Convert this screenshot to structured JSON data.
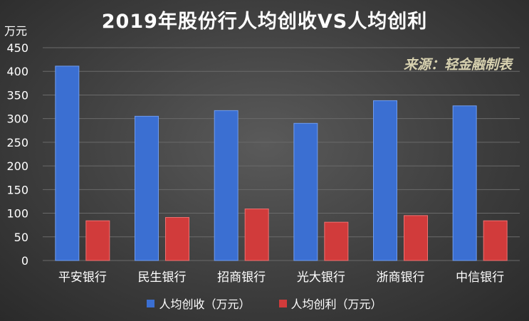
{
  "chart_data": {
    "type": "bar",
    "title": "2019年股份行人均创收VS人均创利",
    "ylabel": "万元",
    "annotation": "来源：轻金融制表",
    "categories": [
      "平安银行",
      "民生银行",
      "招商银行",
      "光大银行",
      "浙商银行",
      "中信银行"
    ],
    "series": [
      {
        "name": "人均创收（万元）",
        "values": [
          411,
          305,
          317,
          290,
          338,
          327
        ],
        "color": "#3b6fd2"
      },
      {
        "name": "人均创利（万元）",
        "values": [
          84,
          91,
          109,
          81,
          95,
          84
        ],
        "color": "#d13b3b"
      }
    ],
    "ylim": [
      0,
      450
    ],
    "yticks": [
      0,
      50,
      100,
      150,
      200,
      250,
      300,
      350,
      400,
      450
    ],
    "grid": true,
    "legend": "bottom"
  }
}
